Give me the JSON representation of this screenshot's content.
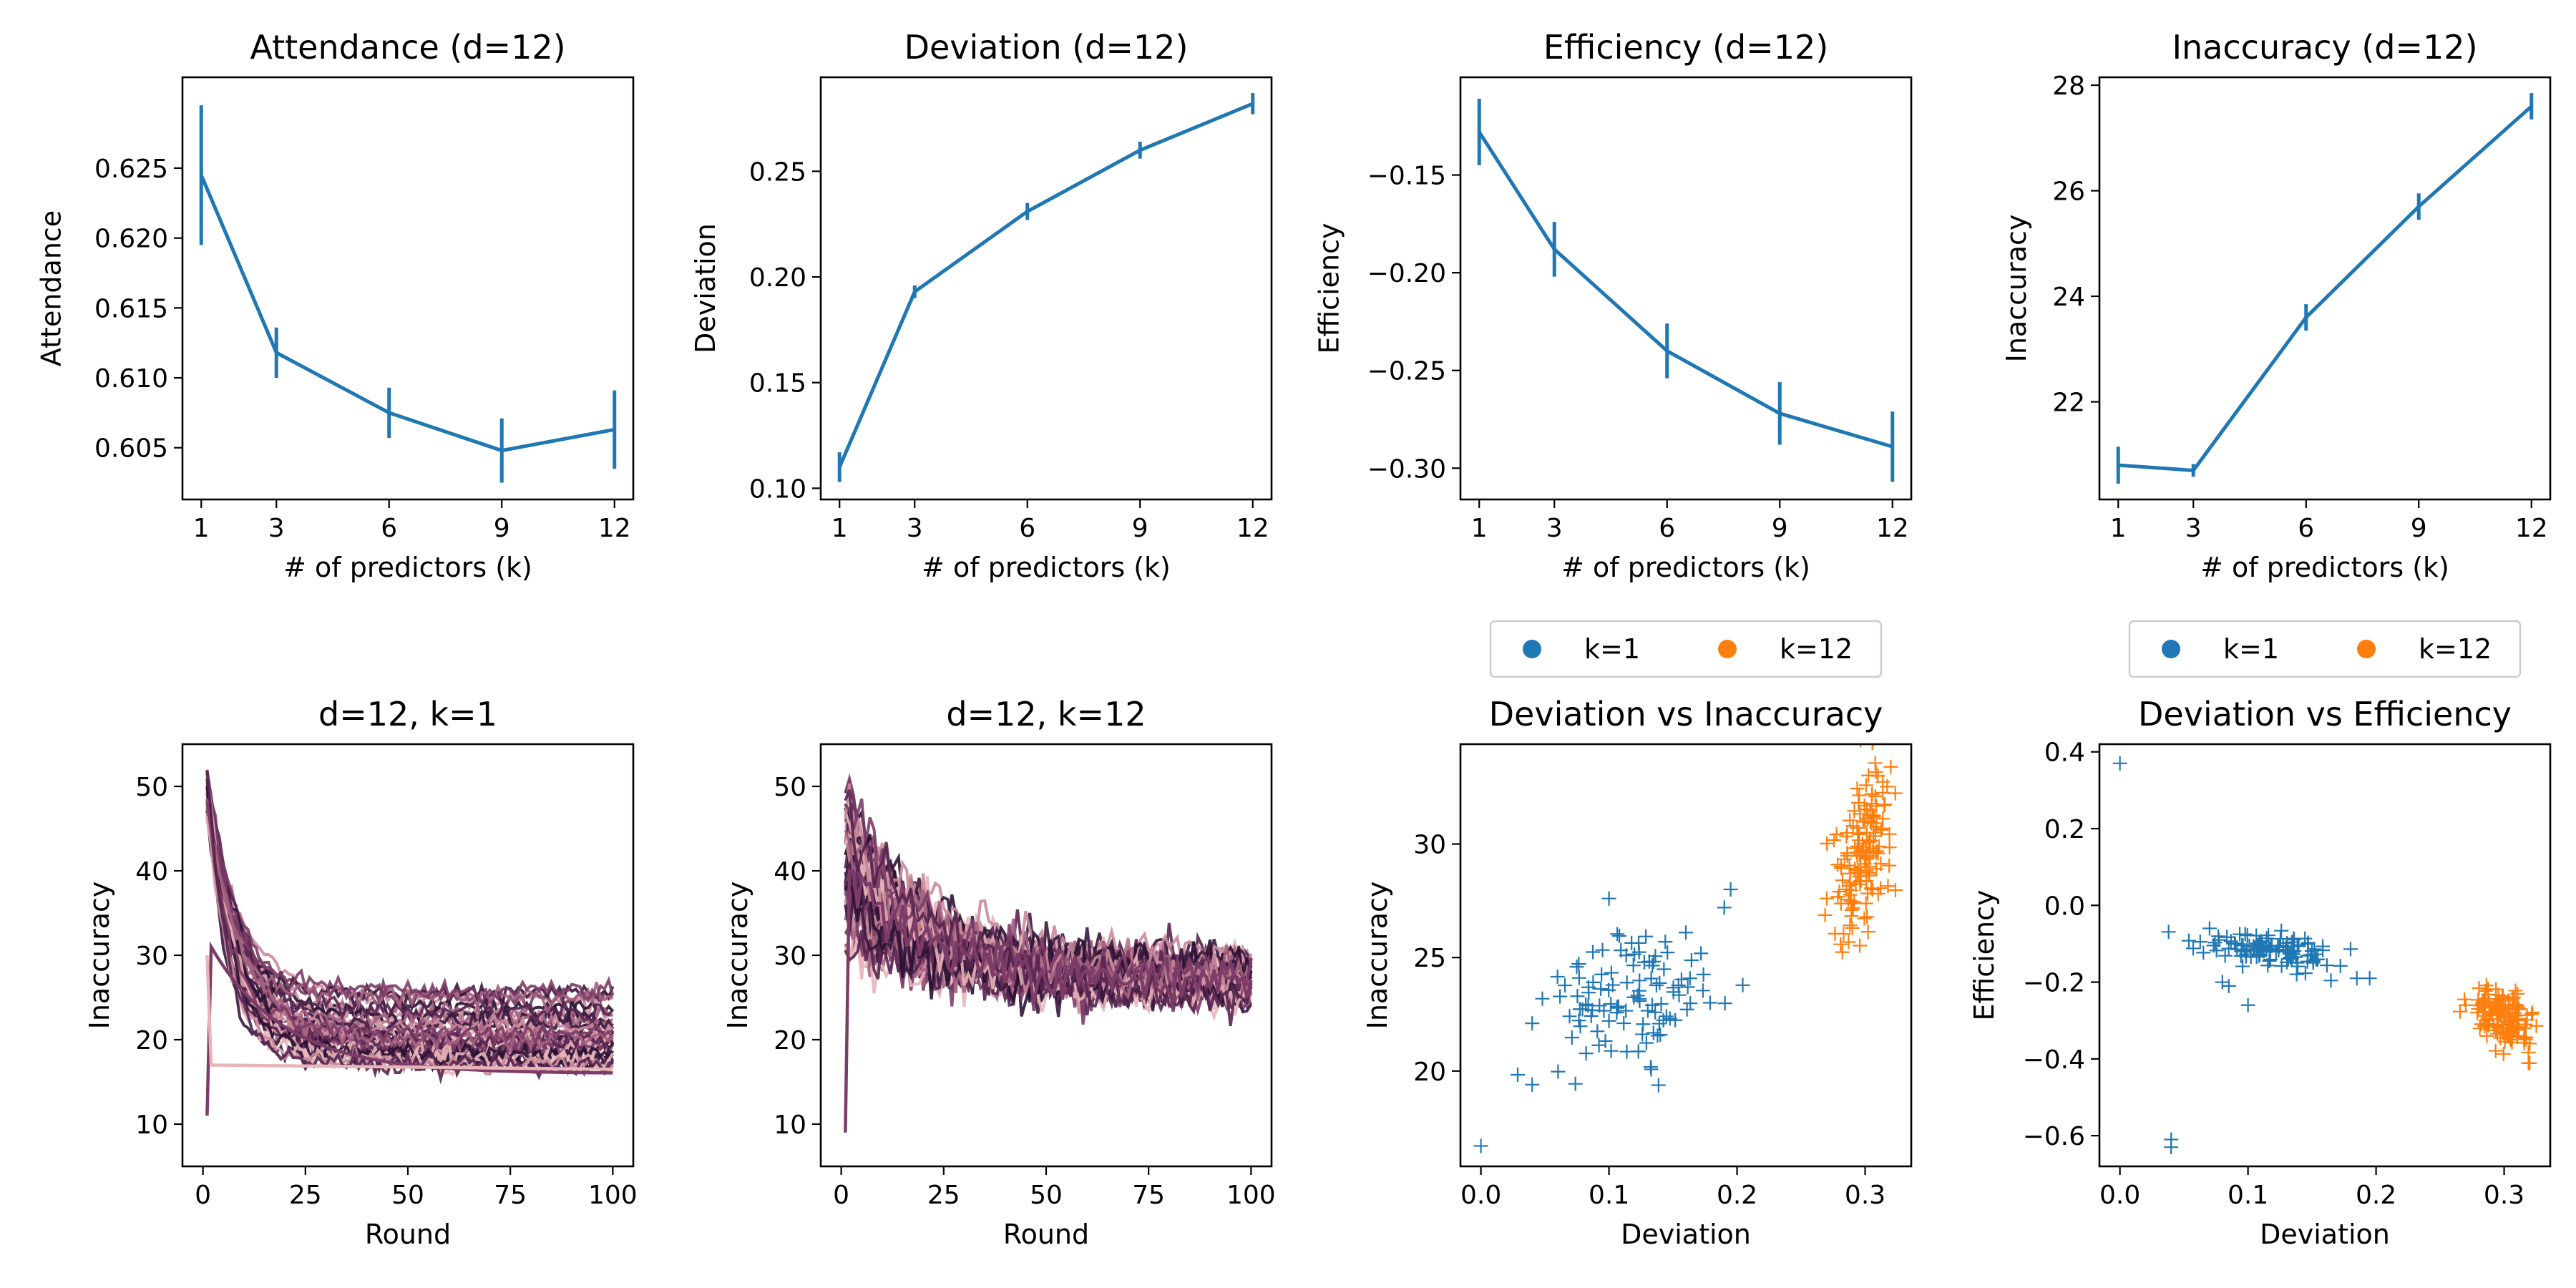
{
  "chart_data": [
    {
      "type": "line",
      "title": "Attendance (d=12)",
      "xlabel": "# of predictors (k)",
      "ylabel": "Attendance",
      "xlim": [
        0.5,
        12.5
      ],
      "ylim": [
        0.6013,
        0.6315
      ],
      "xticks": [
        1,
        3,
        6,
        9,
        12
      ],
      "yticks": [
        0.605,
        0.61,
        0.615,
        0.62,
        0.625
      ],
      "ytick_labels": [
        "0.605",
        "0.610",
        "0.615",
        "0.620",
        "0.625"
      ],
      "color": "#1f77b4",
      "x": [
        1,
        3,
        6,
        9,
        12
      ],
      "y": [
        0.6245,
        0.6118,
        0.6075,
        0.6048,
        0.6063
      ],
      "err": [
        0.005,
        0.0018,
        0.0018,
        0.0023,
        0.0028
      ]
    },
    {
      "type": "line",
      "title": "Deviation (d=12)",
      "xlabel": "# of predictors (k)",
      "ylabel": "Deviation",
      "xlim": [
        0.5,
        12.5
      ],
      "ylim": [
        0.0947,
        0.2945
      ],
      "xticks": [
        1,
        3,
        6,
        9,
        12
      ],
      "yticks": [
        0.1,
        0.15,
        0.2,
        0.25
      ],
      "ytick_labels": [
        "0.10",
        "0.15",
        "0.20",
        "0.25"
      ],
      "color": "#1f77b4",
      "x": [
        1,
        3,
        6,
        9,
        12
      ],
      "y": [
        0.11,
        0.193,
        0.231,
        0.26,
        0.282
      ],
      "err": [
        0.007,
        0.003,
        0.004,
        0.004,
        0.005
      ]
    },
    {
      "type": "line",
      "title": "Efficiency (d=12)",
      "xlabel": "# of predictors (k)",
      "ylabel": "Efficiency",
      "xlim": [
        0.5,
        12.5
      ],
      "ylim": [
        -0.316,
        -0.1
      ],
      "xticks": [
        1,
        3,
        6,
        9,
        12
      ],
      "yticks": [
        -0.3,
        -0.25,
        -0.2,
        -0.15
      ],
      "ytick_labels": [
        "−0.30",
        "−0.25",
        "−0.20",
        "−0.15"
      ],
      "color": "#1f77b4",
      "x": [
        1,
        3,
        6,
        9,
        12
      ],
      "y": [
        -0.128,
        -0.188,
        -0.24,
        -0.272,
        -0.289
      ],
      "err": [
        0.017,
        0.014,
        0.014,
        0.016,
        0.018
      ]
    },
    {
      "type": "line",
      "title": "Inaccuracy (d=12)",
      "xlabel": "# of predictors (k)",
      "ylabel": "Inaccuracy",
      "xlim": [
        0.5,
        12.5
      ],
      "ylim": [
        20.15,
        28.15
      ],
      "xticks": [
        1,
        3,
        6,
        9,
        12
      ],
      "yticks": [
        22,
        24,
        26,
        28
      ],
      "ytick_labels": [
        "22",
        "24",
        "26",
        "28"
      ],
      "color": "#1f77b4",
      "x": [
        1,
        3,
        6,
        9,
        12
      ],
      "y": [
        20.8,
        20.7,
        23.6,
        25.7,
        27.6
      ],
      "err": [
        0.35,
        0.12,
        0.25,
        0.25,
        0.25
      ]
    },
    {
      "type": "line",
      "title": "d=12, k=1",
      "xlabel": "Round",
      "ylabel": "Inaccuracy",
      "xlim": [
        -5,
        105
      ],
      "ylim": [
        5,
        55
      ],
      "xticks": [
        0,
        25,
        50,
        75,
        100
      ],
      "yticks": [
        10,
        20,
        30,
        40,
        50
      ],
      "ytick_labels": [
        "10",
        "20",
        "30",
        "40",
        "50"
      ],
      "rounds": 100,
      "palette": [
        "#e8b4b8",
        "#c98a9b",
        "#a3607f",
        "#7c3c67",
        "#562550",
        "#3a1a3e",
        "#2b1233"
      ],
      "series_count": 40,
      "start_range": [
        46,
        52
      ],
      "final_range": [
        17,
        26
      ],
      "outliers": [
        {
          "start": 11,
          "peak": 31,
          "final": 16
        },
        {
          "start": 30,
          "peak": 30,
          "final": 16.5,
          "flat": 17
        }
      ]
    },
    {
      "type": "line",
      "title": "d=12, k=12",
      "xlabel": "Round",
      "ylabel": "Inaccuracy",
      "xlim": [
        -5,
        105
      ],
      "ylim": [
        5,
        55
      ],
      "xticks": [
        0,
        25,
        50,
        75,
        100
      ],
      "yticks": [
        10,
        20,
        30,
        40,
        50
      ],
      "ytick_labels": [
        "10",
        "20",
        "30",
        "40",
        "50"
      ],
      "rounds": 100,
      "palette": [
        "#e8b4b8",
        "#c98a9b",
        "#a3607f",
        "#7c3c67",
        "#562550",
        "#3a1a3e",
        "#2b1233"
      ],
      "series_count": 40,
      "start_range": [
        30,
        50
      ],
      "final_range": [
        25,
        30
      ],
      "outliers": [
        {
          "start": 9,
          "peak": 40,
          "final": 27
        }
      ]
    },
    {
      "type": "scatter",
      "title": "Deviation vs Inaccuracy",
      "xlabel": "Deviation",
      "ylabel": "Inaccuracy",
      "xlim": [
        -0.016,
        0.336
      ],
      "ylim": [
        15.8,
        34.4
      ],
      "xticks": [
        0.0,
        0.1,
        0.2,
        0.3
      ],
      "xtick_labels": [
        "0.0",
        "0.1",
        "0.2",
        "0.3"
      ],
      "yticks": [
        20,
        25,
        30
      ],
      "ytick_labels": [
        "20",
        "25",
        "30"
      ],
      "legend": {
        "placement": "above",
        "entries": [
          {
            "label": "k=1",
            "color": "#1f77b4"
          },
          {
            "label": "k=12",
            "color": "#ff7f0e"
          }
        ]
      },
      "series": [
        {
          "name": "k=1",
          "color": "#1f77b4",
          "center": [
            0.12,
            23.0
          ],
          "spread": [
            0.035,
            1.6
          ],
          "count": 110,
          "extra_points": [
            [
              0.0,
              16.7
            ],
            [
              0.04,
              19.4
            ],
            [
              0.04,
              22.1
            ],
            [
              0.1,
              27.6
            ],
            [
              0.19,
              27.2
            ],
            [
              0.195,
              28.0
            ],
            [
              0.16,
              26.1
            ]
          ]
        },
        {
          "name": "k=12",
          "color": "#ff7f0e",
          "center": [
            0.298,
            29.8
          ],
          "spread": [
            0.011,
            1.6
          ],
          "count": 140,
          "slope": 140,
          "extra_points": [
            [
              0.32,
              33.4
            ],
            [
              0.31,
              33.0
            ],
            [
              0.27,
              27.6
            ],
            [
              0.29,
              26.3
            ]
          ]
        }
      ]
    },
    {
      "type": "scatter",
      "title": "Deviation vs Efficiency",
      "xlabel": "Deviation",
      "ylabel": "Efficiency",
      "xlim": [
        -0.016,
        0.336
      ],
      "ylim": [
        -0.68,
        0.42
      ],
      "xticks": [
        0.0,
        0.1,
        0.2,
        0.3
      ],
      "xtick_labels": [
        "0.0",
        "0.1",
        "0.2",
        "0.3"
      ],
      "yticks": [
        -0.6,
        -0.4,
        -0.2,
        0.0,
        0.2,
        0.4
      ],
      "ytick_labels": [
        "−0.6",
        "−0.4",
        "−0.2",
        "0.0",
        "0.2",
        "0.4"
      ],
      "legend": {
        "placement": "above",
        "entries": [
          {
            "label": "k=1",
            "color": "#1f77b4"
          },
          {
            "label": "k=12",
            "color": "#ff7f0e"
          }
        ]
      },
      "series": [
        {
          "name": "k=1",
          "color": "#1f77b4",
          "center": [
            0.12,
            -0.115
          ],
          "spread": [
            0.028,
            0.02
          ],
          "count": 110,
          "slope": -0.8,
          "extra_points": [
            [
              0.0,
              0.37
            ],
            [
              0.04,
              -0.61
            ],
            [
              0.04,
              -0.63
            ],
            [
              0.085,
              -0.21
            ],
            [
              0.1,
              -0.26
            ],
            [
              0.08,
              -0.2
            ],
            [
              0.185,
              -0.19
            ],
            [
              0.195,
              -0.19
            ],
            [
              0.07,
              -0.06
            ]
          ]
        },
        {
          "name": "k=12",
          "color": "#ff7f0e",
          "center": [
            0.298,
            -0.29
          ],
          "spread": [
            0.011,
            0.035
          ],
          "count": 140,
          "slope": -2.0,
          "extra_points": [
            [
              0.32,
              -0.36
            ],
            [
              0.31,
              -0.34
            ],
            [
              0.27,
              -0.26
            ]
          ]
        }
      ]
    }
  ]
}
